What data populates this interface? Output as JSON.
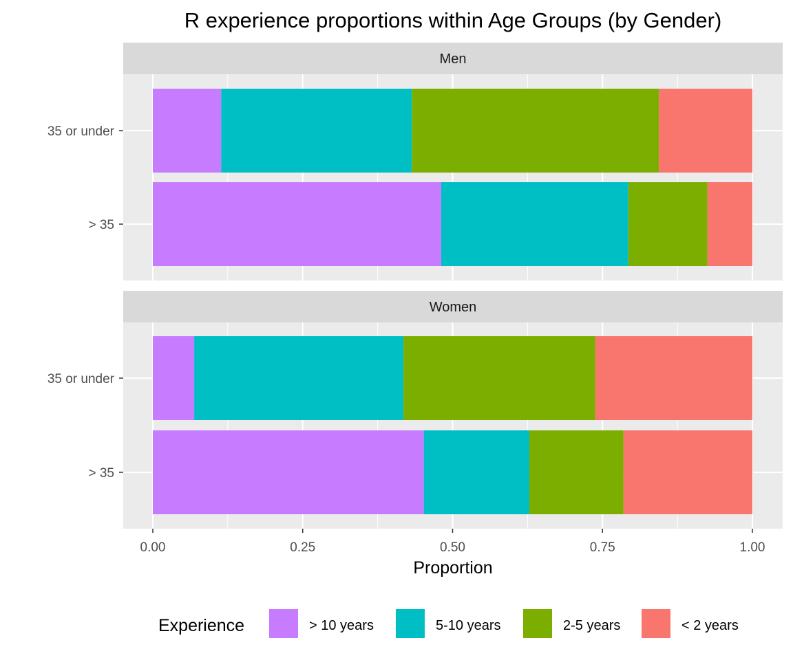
{
  "chart_data": {
    "type": "bar",
    "orientation": "horizontal",
    "stacked": true,
    "title": "R experience proportions within Age Groups (by Gender)",
    "xlabel": "Proportion",
    "ylabel": "",
    "xlim": [
      0,
      1
    ],
    "x_ticks": [
      "0.00",
      "0.25",
      "0.50",
      "0.75",
      "1.00"
    ],
    "x_tick_values": [
      0,
      0.25,
      0.5,
      0.75,
      1.0
    ],
    "categories": [
      "35 or under",
      "> 35"
    ],
    "grid": true,
    "legend": {
      "title": "Experience",
      "position": "bottom"
    },
    "series": [
      {
        "name": "> 10 years",
        "color": "#C77CFF"
      },
      {
        "name": "5-10 years",
        "color": "#00BFC4"
      },
      {
        "name": "2-5 years",
        "color": "#7CAE00"
      },
      {
        "name": "< 2 years",
        "color": "#F8766D"
      }
    ],
    "panels": [
      {
        "label": "Men",
        "bars": [
          {
            "category": "35 or under",
            "values": [
              0.114,
              0.318,
              0.412,
              0.156
            ]
          },
          {
            "category": "> 35",
            "values": [
              0.481,
              0.312,
              0.132,
              0.075
            ]
          }
        ]
      },
      {
        "label": "Women",
        "bars": [
          {
            "category": "35 or under",
            "values": [
              0.069,
              0.349,
              0.32,
              0.262
            ]
          },
          {
            "category": "> 35",
            "values": [
              0.452,
              0.176,
              0.157,
              0.215
            ]
          }
        ]
      }
    ]
  }
}
